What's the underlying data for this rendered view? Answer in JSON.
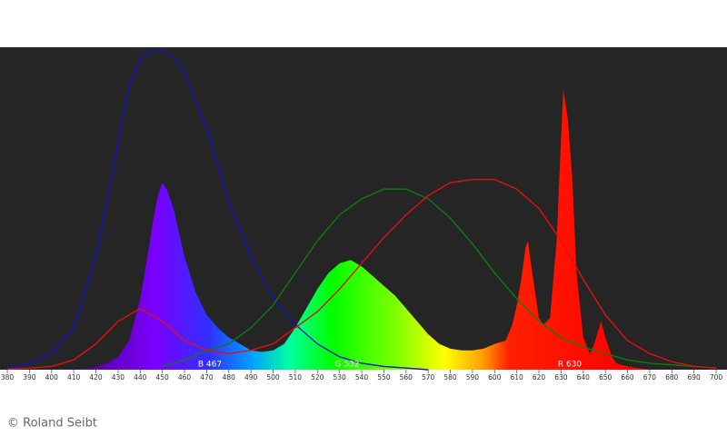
{
  "chart_data": {
    "type": "line",
    "xlim": [
      376.7,
      704.9
    ],
    "ylim": [
      0,
      100
    ],
    "xticks": [
      380,
      390,
      400,
      410,
      420,
      430,
      440,
      450,
      460,
      470,
      480,
      490,
      500,
      510,
      520,
      530,
      540,
      550,
      560,
      570,
      580,
      590,
      600,
      610,
      620,
      630,
      640,
      650,
      660,
      670,
      680,
      690,
      700
    ],
    "series": [
      {
        "style": "area",
        "x": [
          380,
          405,
          415,
          420,
          425,
          430,
          435,
          440,
          443,
          446,
          448,
          450,
          452,
          455,
          460,
          465,
          470,
          475,
          480,
          485,
          490,
          495,
          500,
          505,
          510,
          515,
          520,
          525,
          530,
          535,
          540,
          545,
          550,
          555,
          560,
          565,
          570,
          575,
          580,
          585,
          590,
          595,
          600,
          605,
          608,
          610,
          612,
          614,
          615,
          617,
          620,
          622,
          625,
          628,
          630,
          631,
          633,
          635,
          637,
          640,
          643,
          645,
          648,
          650,
          653,
          655,
          660,
          665,
          670,
          700
        ],
        "values": [
          0,
          0,
          0.3,
          1,
          2,
          4,
          9,
          22,
          34,
          47,
          54,
          58,
          56,
          50,
          35,
          24,
          17,
          13,
          10,
          8,
          6,
          5.5,
          6,
          8,
          13,
          19,
          25,
          30,
          33,
          34,
          32,
          29,
          26,
          23,
          19,
          15,
          11,
          8,
          6.5,
          6,
          6,
          6.5,
          8,
          9,
          14,
          20,
          28,
          38,
          40,
          30,
          16,
          14,
          16,
          40,
          72,
          87,
          78,
          60,
          30,
          10,
          5,
          8,
          15,
          10,
          4,
          2,
          1,
          0.5,
          0,
          0
        ]
      },
      {
        "style": "line",
        "color": "#1010d0",
        "x": [
          380,
          390,
          400,
          410,
          420,
          430,
          435,
          440,
          445,
          450,
          455,
          460,
          470,
          480,
          490,
          500,
          510,
          520,
          530,
          540,
          550,
          560,
          570
        ],
        "values": [
          0.5,
          2,
          5,
          13,
          35,
          70,
          88,
          96,
          99,
          99,
          97,
          92,
          75,
          52,
          35,
          22,
          14,
          8,
          4,
          2,
          1,
          0.5,
          0
        ]
      },
      {
        "style": "line",
        "color": "#107a10",
        "x": [
          450,
          460,
          470,
          480,
          490,
          500,
          510,
          520,
          530,
          540,
          550,
          560,
          570,
          580,
          590,
          600,
          610,
          620,
          630,
          640,
          650,
          660,
          670,
          680,
          690,
          700
        ],
        "values": [
          1,
          3,
          6,
          8,
          13,
          20,
          30,
          40,
          48,
          53,
          56,
          56,
          53,
          47,
          39,
          30,
          22,
          15,
          10,
          7,
          5,
          3,
          2,
          1.5,
          1,
          0.5
        ]
      },
      {
        "style": "line",
        "color": "#e01010",
        "x": [
          380,
          390,
          400,
          410,
          420,
          430,
          440,
          450,
          460,
          470,
          480,
          490,
          500,
          510,
          520,
          530,
          540,
          550,
          560,
          570,
          580,
          590,
          600,
          610,
          620,
          630,
          640,
          650,
          660,
          670,
          680,
          690,
          700
        ],
        "values": [
          0.2,
          0.5,
          1,
          3,
          8,
          15,
          19,
          15,
          9,
          6,
          5,
          6,
          8,
          13,
          18,
          25,
          33,
          41,
          48,
          54,
          58,
          59,
          59,
          56,
          50,
          40,
          28,
          17,
          9,
          5,
          2.5,
          1,
          0.5
        ]
      }
    ],
    "annotations": [
      "B 467",
      "G 532",
      "R 630"
    ]
  },
  "copyright": "© Roland Seibt"
}
